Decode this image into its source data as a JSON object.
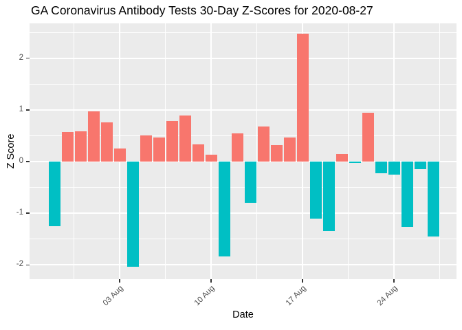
{
  "chart_data": {
    "type": "bar",
    "title": "GA Coronavirus Antibody Tests 30-Day Z-Scores for 2020-08-27",
    "xlabel": "Date",
    "ylabel": "Z Score",
    "x": [
      "2020-07-29",
      "2020-07-30",
      "2020-07-31",
      "2020-08-01",
      "2020-08-02",
      "2020-08-03",
      "2020-08-04",
      "2020-08-05",
      "2020-08-06",
      "2020-08-07",
      "2020-08-08",
      "2020-08-09",
      "2020-08-10",
      "2020-08-11",
      "2020-08-12",
      "2020-08-13",
      "2020-08-14",
      "2020-08-15",
      "2020-08-16",
      "2020-08-17",
      "2020-08-18",
      "2020-08-19",
      "2020-08-20",
      "2020-08-21",
      "2020-08-22",
      "2020-08-23",
      "2020-08-24",
      "2020-08-25",
      "2020-08-26",
      "2020-08-27"
    ],
    "values": [
      -1.25,
      0.57,
      0.59,
      0.97,
      0.76,
      0.25,
      -2.04,
      0.5,
      0.46,
      0.79,
      0.89,
      0.33,
      0.14,
      -1.84,
      0.54,
      -0.8,
      0.68,
      0.32,
      0.46,
      2.47,
      -1.11,
      -1.34,
      0.15,
      -0.03,
      0.95,
      -0.22,
      -0.25,
      -1.27,
      -0.14,
      -1.45
    ],
    "bar_colors": {
      "positive": "#F8766D",
      "negative": "#00BFC4"
    },
    "x_tick_labels": [
      {
        "index": 5,
        "label": "03 Aug"
      },
      {
        "index": 12,
        "label": "10 Aug"
      },
      {
        "index": 19,
        "label": "17 Aug"
      },
      {
        "index": 26,
        "label": "24 Aug"
      }
    ],
    "y_ticks": [
      {
        "value": -2,
        "label": "-2"
      },
      {
        "value": -1,
        "label": "-1"
      },
      {
        "value": 0,
        "label": "0"
      },
      {
        "value": 1,
        "label": "1"
      },
      {
        "value": 2,
        "label": "2"
      }
    ],
    "y_minor": [
      -1.5,
      -0.5,
      0.5,
      1.5,
      2.5
    ],
    "x_minor_index": [
      1.5,
      8.5,
      15.5,
      22.5,
      29.5
    ],
    "ylim": [
      -2.275,
      2.675
    ],
    "grid": true,
    "legend": "none",
    "panel_bg": "#EBEBEB",
    "grid_color": "#FFFFFF",
    "tick_color": "#333333",
    "tick_label_color": "#4D4D4D"
  }
}
